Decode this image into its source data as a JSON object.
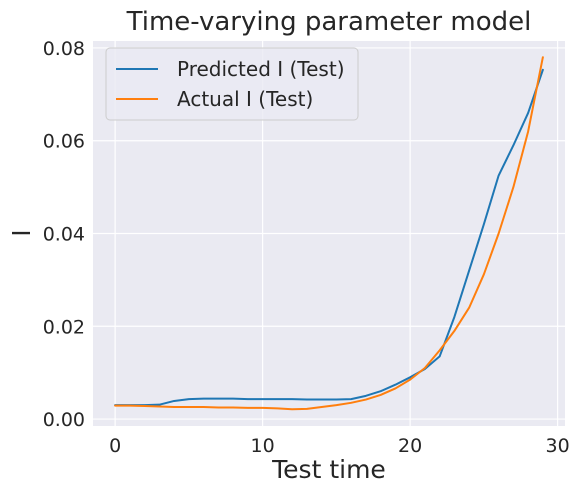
{
  "chart_data": {
    "type": "line",
    "title": "Time-varying parameter model",
    "xlabel": "Test time",
    "ylabel": "I",
    "xlim": [
      -1.5,
      30.5
    ],
    "ylim": [
      -0.0015,
      0.0815
    ],
    "xticks": [
      0,
      10,
      20,
      30
    ],
    "xtick_labels": [
      "0",
      "10",
      "20",
      "30"
    ],
    "yticks": [
      0.0,
      0.02,
      0.04,
      0.06,
      0.08
    ],
    "ytick_labels": [
      "0.00",
      "0.02",
      "0.04",
      "0.06",
      "0.08"
    ],
    "grid": true,
    "legend_position": "top-left",
    "x": [
      0,
      1,
      2,
      3,
      4,
      5,
      6,
      7,
      8,
      9,
      10,
      11,
      12,
      13,
      14,
      15,
      16,
      17,
      18,
      19,
      20,
      21,
      22,
      23,
      24,
      25,
      26,
      27,
      28,
      29
    ],
    "series": [
      {
        "name": "Predicted I (Test)",
        "color": "#1f77b4",
        "values": [
          0.003,
          0.003,
          0.003,
          0.0031,
          0.0039,
          0.0043,
          0.0044,
          0.0044,
          0.0044,
          0.0043,
          0.0043,
          0.0043,
          0.0043,
          0.0042,
          0.0042,
          0.0042,
          0.0043,
          0.005,
          0.006,
          0.0074,
          0.009,
          0.0108,
          0.0135,
          0.022,
          0.032,
          0.042,
          0.0525,
          0.059,
          0.066,
          0.0753
        ]
      },
      {
        "name": "Actual I (Test)",
        "color": "#ff7f0e",
        "values": [
          0.0029,
          0.0029,
          0.0028,
          0.0027,
          0.0026,
          0.0026,
          0.0026,
          0.0025,
          0.0025,
          0.0024,
          0.0024,
          0.0023,
          0.0021,
          0.0022,
          0.0026,
          0.003,
          0.0035,
          0.0042,
          0.0052,
          0.0066,
          0.0085,
          0.011,
          0.0148,
          0.019,
          0.024,
          0.0312,
          0.04,
          0.05,
          0.062,
          0.078
        ]
      }
    ]
  }
}
